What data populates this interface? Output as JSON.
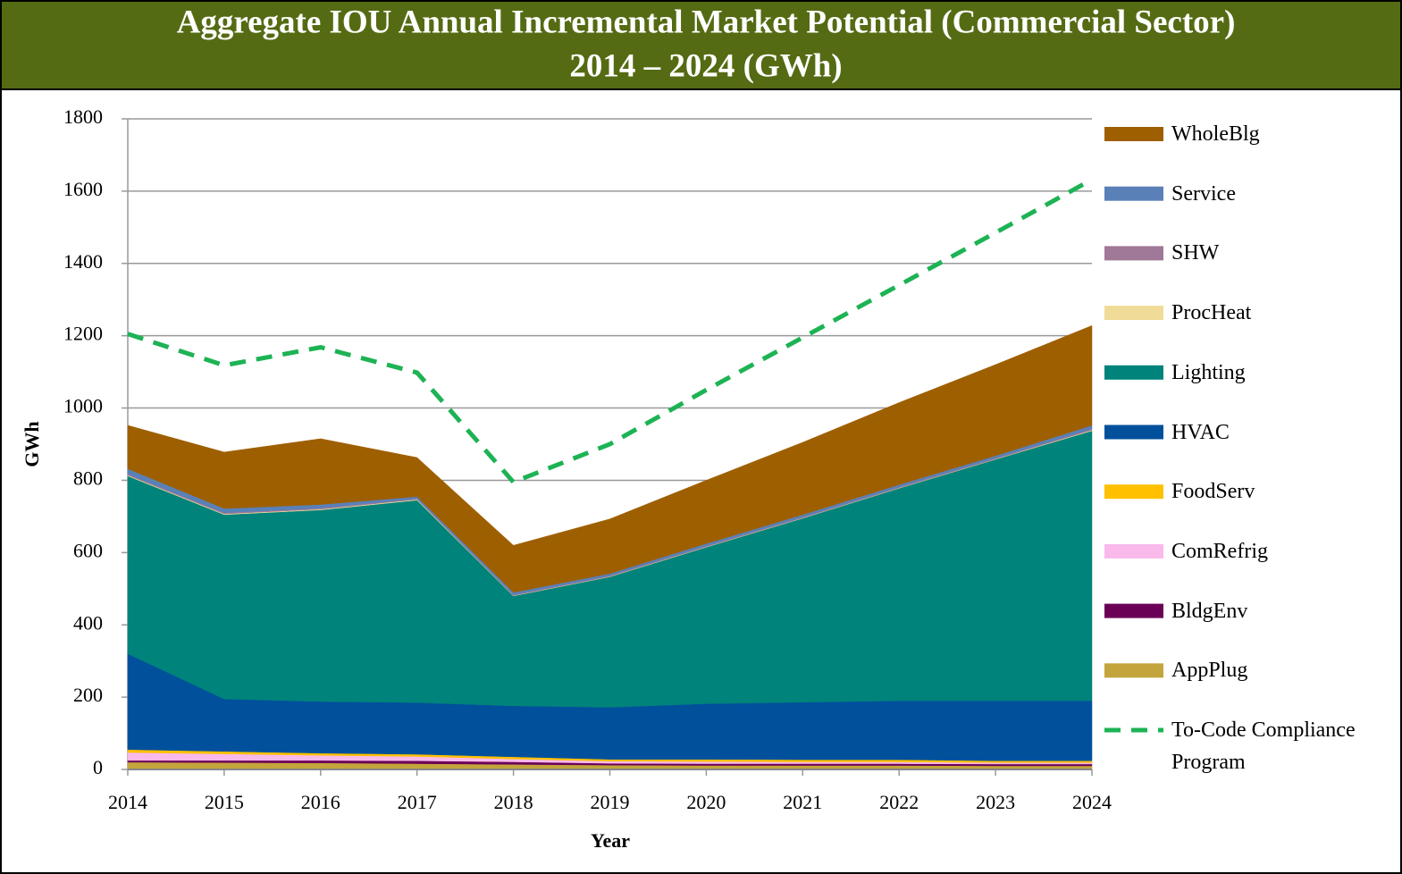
{
  "chart_data": {
    "type": "area",
    "stacked": true,
    "title": [
      "Aggregate IOU Annual Incremental Market Potential (Commercial Sector)",
      "2014 – 2024 (GWh)"
    ],
    "ylabel": "GWh",
    "xlabel": "Year",
    "categories": [
      "2014",
      "2015",
      "2016",
      "2017",
      "2018",
      "2019",
      "2020",
      "2021",
      "2022",
      "2023",
      "2024"
    ],
    "ylim": [
      0,
      1800
    ],
    "yticks": [
      0,
      200,
      400,
      600,
      800,
      1000,
      1200,
      1400,
      1600,
      1800
    ],
    "grid": true,
    "series": [
      {
        "name": "AppPlug",
        "color": "#c4a43c",
        "values": [
          20,
          19,
          18,
          16,
          14,
          12,
          11,
          11,
          11,
          10,
          10
        ]
      },
      {
        "name": "BldgEnv",
        "color": "#6b0057",
        "values": [
          5,
          6,
          7,
          8,
          7,
          5,
          5,
          5,
          5,
          5,
          5
        ]
      },
      {
        "name": "ComRefrig",
        "color": "#f9b9ea",
        "values": [
          22,
          18,
          14,
          12,
          8,
          6,
          6,
          5,
          5,
          4,
          4
        ]
      },
      {
        "name": "FoodServ",
        "color": "#ffc000",
        "values": [
          8,
          7,
          6,
          6,
          6,
          5,
          6,
          6,
          6,
          5,
          5
        ]
      },
      {
        "name": "HVAC",
        "color": "#00509c",
        "values": [
          265,
          145,
          143,
          143,
          141,
          144,
          154,
          159,
          163,
          166,
          166
        ]
      },
      {
        "name": "Lighting",
        "color": "#00837a",
        "values": [
          492,
          510,
          530,
          560,
          304,
          361,
          433,
          509,
          588,
          668,
          747
        ]
      },
      {
        "name": "ProcHeat",
        "color": "#f0dc98",
        "values": [
          2,
          2,
          2,
          2,
          1,
          1,
          1,
          1,
          1,
          1,
          2
        ]
      },
      {
        "name": "SHW",
        "color": "#a07898",
        "values": [
          3,
          3,
          3,
          2,
          2,
          2,
          2,
          2,
          2,
          2,
          3
        ]
      },
      {
        "name": "Service",
        "color": "#5a80b8",
        "values": [
          15,
          12,
          10,
          6,
          7,
          6,
          7,
          7,
          7,
          7,
          10
        ]
      },
      {
        "name": "WholeBlg",
        "color": "#9e5f00",
        "values": [
          120,
          156,
          182,
          108,
          130,
          151,
          175,
          200,
          227,
          252,
          276
        ]
      },
      {
        "name": "To-Code Compliance Program",
        "type": "line",
        "dashed": true,
        "color": "#1db354",
        "values": [
          1205,
          1118,
          1168,
          1098,
          795,
          900,
          1050,
          1195,
          1340,
          1485,
          1632
        ]
      }
    ]
  }
}
